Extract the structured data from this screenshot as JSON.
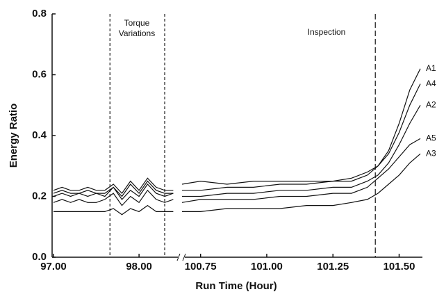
{
  "chart_data": {
    "type": "line",
    "x_label": "Run Time (Hour)",
    "y_label": "Energy Ratio",
    "ylim": [
      0,
      0.8
    ],
    "yticks": [
      {
        "value": 0,
        "label": "0.0"
      },
      0.2,
      0.4,
      0.6,
      0.8
    ],
    "x_segments": [
      {
        "xlim": [
          97.0,
          98.47
        ],
        "xticks": [
          {
            "value": 97,
            "label": "97.00"
          },
          {
            "value": 98,
            "label": "98.00"
          }
        ]
      },
      {
        "xlim": [
          100.68,
          101.58
        ],
        "xticks": [
          100.75,
          {
            "value": 101,
            "label": "101.00"
          },
          101.25,
          {
            "value": 101.5,
            "label": "101.50"
          }
        ]
      }
    ],
    "x": [
      97.0,
      97.1,
      97.2,
      97.3,
      97.4,
      97.5,
      97.6,
      97.7,
      97.8,
      97.9,
      98.0,
      98.1,
      98.2,
      98.3,
      98.4,
      100.68,
      100.75,
      100.85,
      100.95,
      101.05,
      101.15,
      101.25,
      101.32,
      101.38,
      101.42,
      101.46,
      101.5,
      101.54,
      101.58
    ],
    "series": [
      {
        "name": "A1",
        "color": "#111111",
        "values": [
          0.22,
          0.23,
          0.22,
          0.22,
          0.23,
          0.22,
          0.22,
          0.24,
          0.21,
          0.25,
          0.22,
          0.26,
          0.23,
          0.22,
          0.22,
          0.24,
          0.25,
          0.24,
          0.25,
          0.25,
          0.25,
          0.25,
          0.26,
          0.28,
          0.3,
          0.35,
          0.44,
          0.55,
          0.62
        ]
      },
      {
        "name": "A4",
        "color": "#111111",
        "values": [
          0.2,
          0.21,
          0.2,
          0.21,
          0.2,
          0.21,
          0.2,
          0.23,
          0.19,
          0.22,
          0.2,
          0.24,
          0.21,
          0.2,
          0.21,
          0.22,
          0.22,
          0.23,
          0.23,
          0.24,
          0.24,
          0.25,
          0.25,
          0.27,
          0.3,
          0.34,
          0.41,
          0.5,
          0.57
        ]
      },
      {
        "name": "A2",
        "color": "#111111",
        "values": [
          0.18,
          0.19,
          0.18,
          0.19,
          0.18,
          0.18,
          0.19,
          0.21,
          0.17,
          0.2,
          0.18,
          0.22,
          0.19,
          0.18,
          0.19,
          0.2,
          0.2,
          0.21,
          0.21,
          0.22,
          0.22,
          0.23,
          0.23,
          0.25,
          0.27,
          0.31,
          0.37,
          0.44,
          0.5
        ]
      },
      {
        "name": "A5",
        "color": "#111111",
        "values": [
          0.21,
          0.22,
          0.21,
          0.21,
          0.22,
          0.21,
          0.21,
          0.23,
          0.2,
          0.24,
          0.21,
          0.25,
          0.22,
          0.21,
          0.21,
          0.18,
          0.19,
          0.19,
          0.19,
          0.2,
          0.2,
          0.21,
          0.21,
          0.23,
          0.26,
          0.29,
          0.33,
          0.37,
          0.39
        ]
      },
      {
        "name": "A3",
        "color": "#111111",
        "values": [
          0.15,
          0.15,
          0.15,
          0.15,
          0.15,
          0.15,
          0.15,
          0.16,
          0.14,
          0.16,
          0.15,
          0.17,
          0.15,
          0.15,
          0.15,
          0.15,
          0.15,
          0.16,
          0.16,
          0.16,
          0.17,
          0.17,
          0.18,
          0.19,
          0.21,
          0.24,
          0.27,
          0.31,
          0.34
        ]
      }
    ],
    "markers": [
      {
        "x": 97.66,
        "label": [
          "Torque"
        ]
      },
      {
        "x": 98.3,
        "label": [
          "Variations"
        ]
      },
      {
        "x": 101.41,
        "label": [
          "Inspection"
        ]
      }
    ]
  }
}
